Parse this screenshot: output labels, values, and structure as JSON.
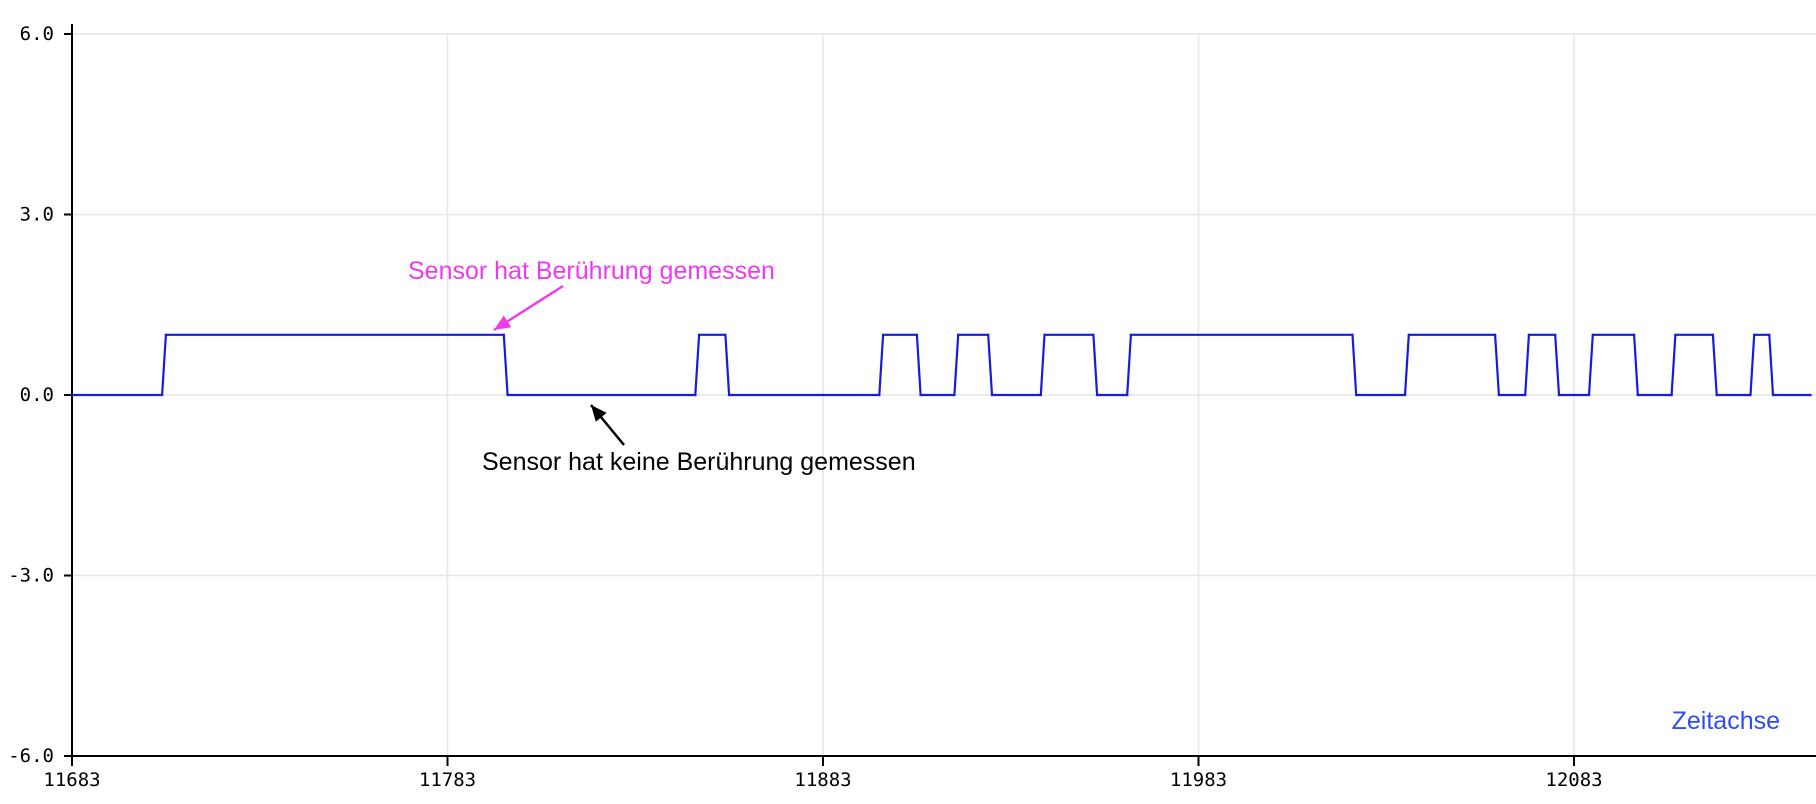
{
  "chart_data": {
    "type": "line",
    "x_ticks": [
      11683,
      11783,
      11883,
      11983,
      12083
    ],
    "y_ticks": [
      6.0,
      3.0,
      0.0,
      -3.0,
      -6.0
    ],
    "y_tick_labels": [
      "6.0",
      "3.0",
      "0.0",
      "-3.0",
      "-6.0"
    ],
    "x_tick_labels": [
      "11683",
      "11783",
      "11883",
      "11983",
      "12083"
    ],
    "xlim": [
      11683,
      12146
    ],
    "ylim": [
      -6.0,
      6.0
    ],
    "grid": true,
    "series": [
      {
        "color": "#1a1adb",
        "x": [
          11683,
          11707,
          11708,
          11798,
          11799,
          11849,
          11850,
          11857,
          11858,
          11898,
          11899,
          11908,
          11909,
          11918,
          11919,
          11927,
          11928,
          11941,
          11942,
          11955,
          11956,
          11964,
          11965,
          12024,
          12025,
          12038,
          12039,
          12062,
          12063,
          12070,
          12071,
          12078,
          12079,
          12087,
          12088,
          12099,
          12100,
          12109,
          12110,
          12120,
          12121,
          12130,
          12131,
          12135,
          12136,
          12146
        ],
        "y": [
          0,
          0,
          1,
          1,
          0,
          0,
          1,
          1,
          0,
          0,
          1,
          1,
          0,
          0,
          1,
          1,
          0,
          0,
          1,
          1,
          0,
          0,
          1,
          1,
          0,
          0,
          1,
          1,
          0,
          0,
          1,
          1,
          0,
          0,
          1,
          1,
          0,
          0,
          1,
          1,
          0,
          0,
          1,
          1,
          0,
          0
        ]
      }
    ],
    "annotations": [
      {
        "text": "Sensor hat Berührung gemessen",
        "color": "#ee3aee"
      },
      {
        "text": "Sensor hat keine Berührung gemessen",
        "color": "#000000"
      }
    ],
    "xlabel": "Zeitachse",
    "xlabel_color": "#2e4df0"
  }
}
